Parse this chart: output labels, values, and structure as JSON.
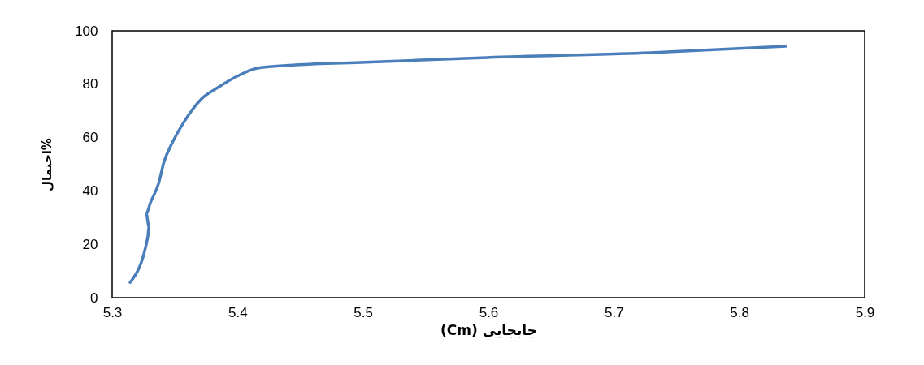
{
  "chart_data": {
    "type": "line",
    "xlabel": "(Cm)  جابجایی",
    "ylabel": "احتمال%",
    "x": [
      5.3143,
      5.3283,
      5.3294,
      5.3272,
      5.3305,
      5.3369,
      5.3413,
      5.3477,
      5.3575,
      5.3704,
      5.3855,
      5.4006,
      5.4158,
      5.446,
      5.5022,
      5.599,
      5.729,
      5.837
    ],
    "series": [
      {
        "color": "#4a7ebb",
        "values": [
          5.7,
          22.4,
          26.4,
          31.5,
          35.6,
          42.6,
          50.8,
          57.8,
          66,
          74.1,
          79.1,
          83.2,
          86,
          87.2,
          88.2,
          90,
          91.8,
          94.2
        ]
      }
    ],
    "xlim": [
      5.3,
      5.9
    ],
    "xticks": [
      5.3,
      5.4,
      5.5,
      5.6,
      5.7,
      5.8,
      5.9
    ],
    "ylim": [
      0,
      100
    ],
    "yticks": [
      0,
      20,
      40,
      60,
      80,
      100
    ],
    "grid": false,
    "marker": "none",
    "line_style": "solid"
  }
}
